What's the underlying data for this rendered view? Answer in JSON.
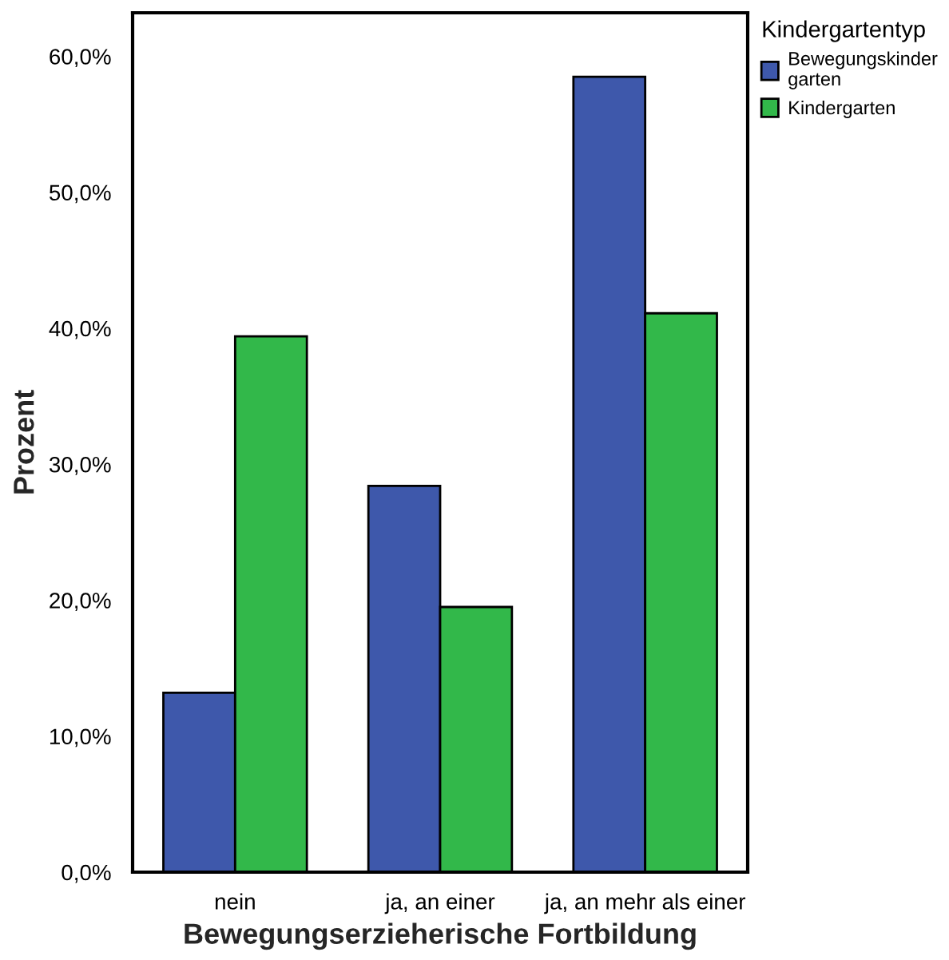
{
  "chart_data": {
    "type": "bar",
    "xlabel": "Bewegungserzieherische Fortbildung",
    "ylabel": "Prozent",
    "legend_title": "Kindergartentyp",
    "categories": [
      "nein",
      "ja, an einer",
      "ja, an mehr als einer"
    ],
    "series": [
      {
        "name": "Bewegungskinder\ngarten",
        "color": "#3e58ab",
        "values": [
          13.2,
          28.4,
          58.5
        ]
      },
      {
        "name": "Kindergarten",
        "color": "#32b84a",
        "values": [
          39.4,
          19.5,
          41.1
        ]
      }
    ],
    "ylim": [
      0,
      63.2
    ],
    "yticks": [
      {
        "value": 0,
        "label": "0,0%"
      },
      {
        "value": 10,
        "label": "10,0%"
      },
      {
        "value": 20,
        "label": "20,0%"
      },
      {
        "value": 30,
        "label": "30,0%"
      },
      {
        "value": 40,
        "label": "40,0%"
      },
      {
        "value": 50,
        "label": "50,0%"
      },
      {
        "value": 60,
        "label": "60,0%"
      }
    ],
    "grid": false,
    "legend": "top right"
  }
}
